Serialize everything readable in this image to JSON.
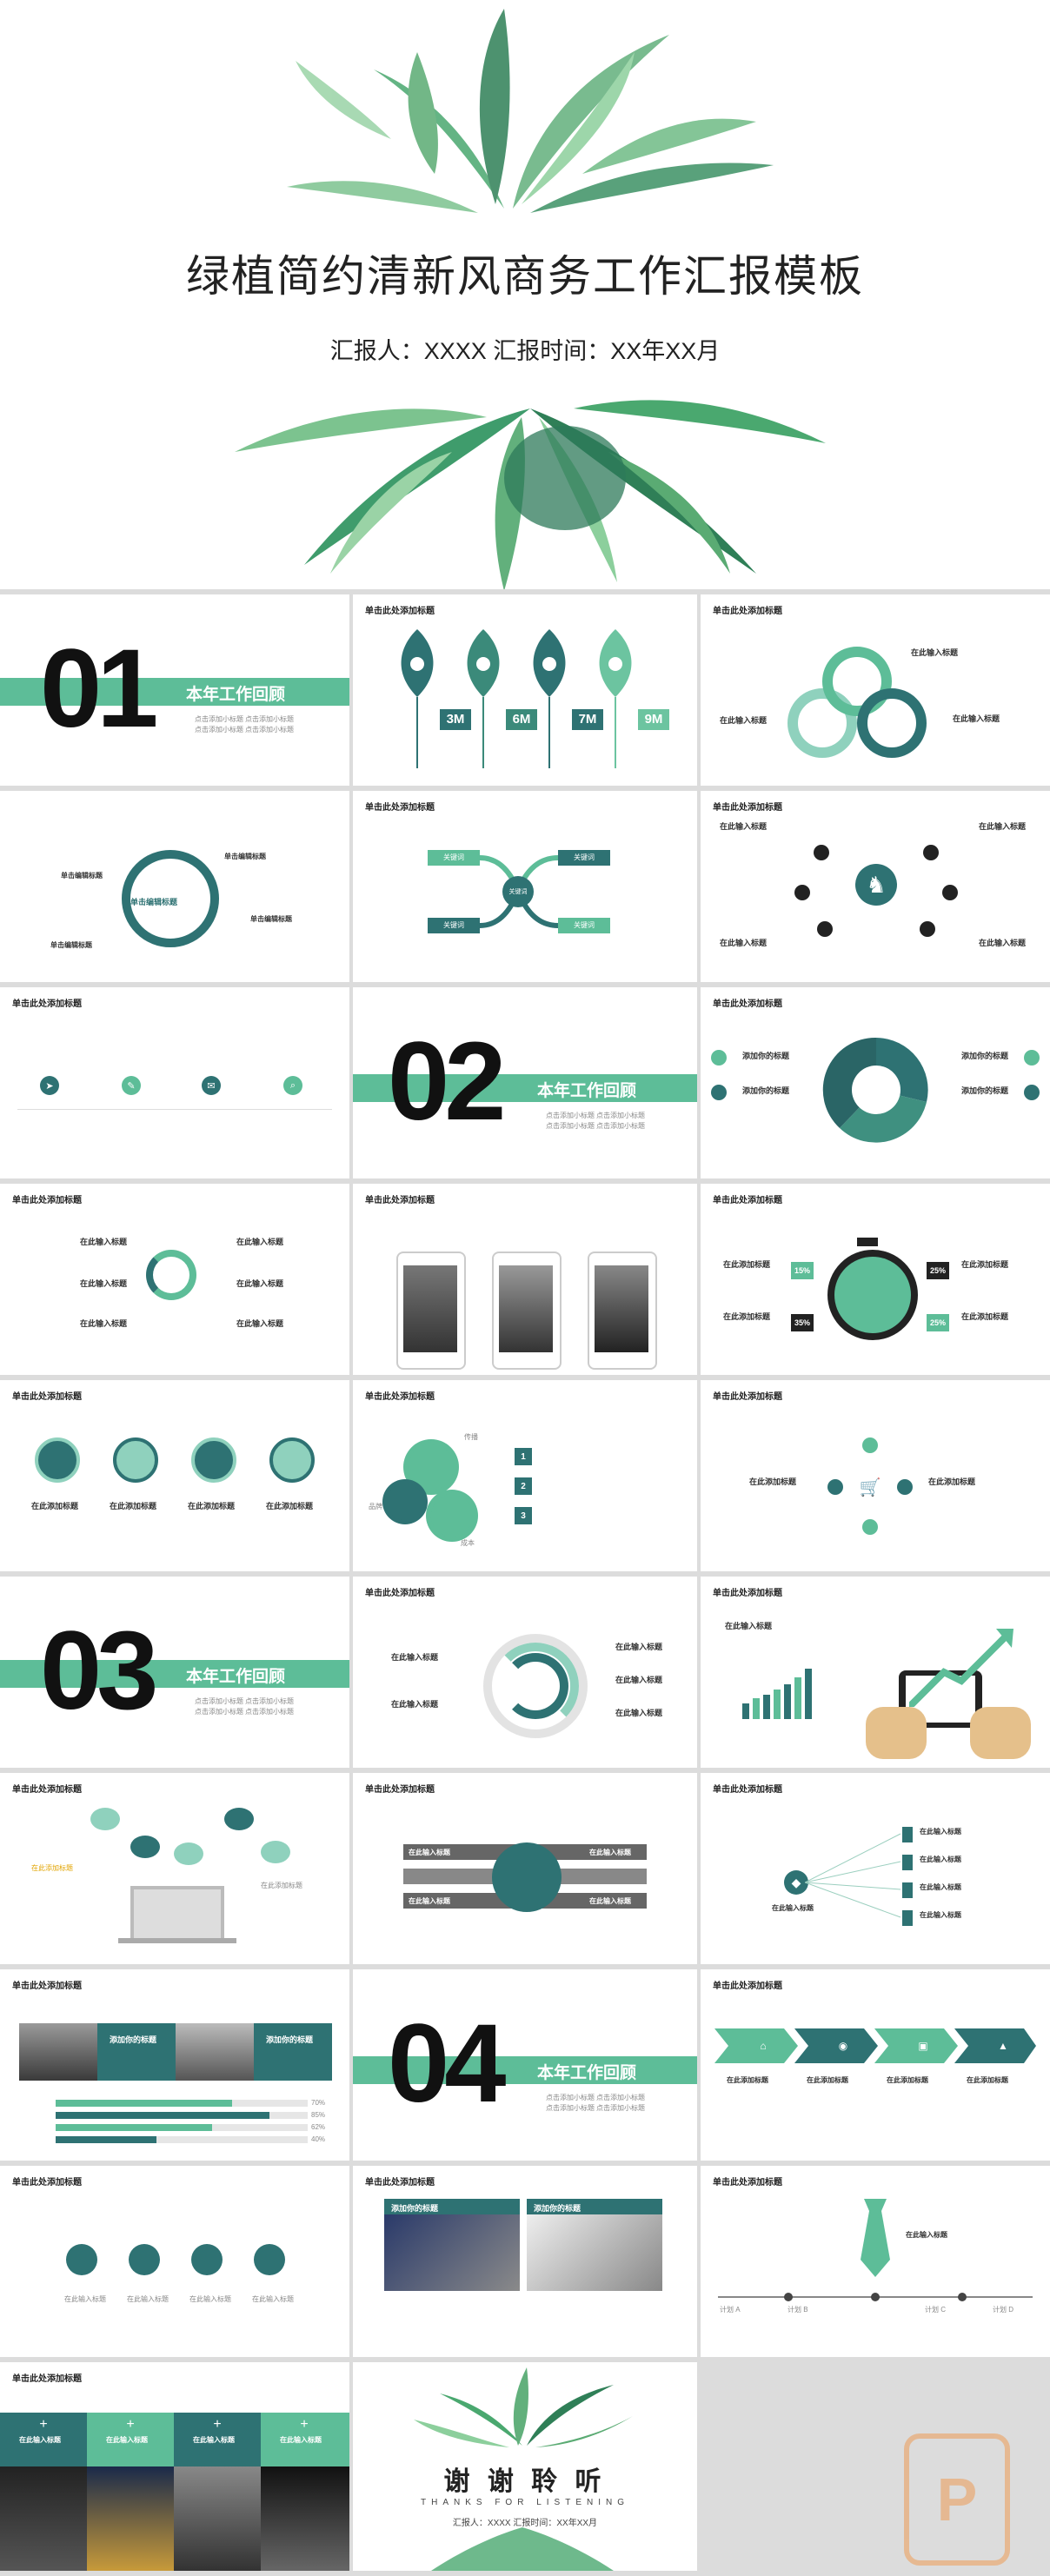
{
  "colors": {
    "green": "#5dbd98",
    "teal": "#2e7273",
    "light": "#8fd1bd"
  },
  "cover": {
    "title": "绿植简约清新风商务工作汇报模板",
    "subtitle": "汇报人：XXXX 汇报时间：XX年XX月"
  },
  "slide_header": "单击此处添加标题",
  "sections": [
    {
      "num": "01",
      "label": "本年工作回顾"
    },
    {
      "num": "02",
      "label": "本年工作回顾"
    },
    {
      "num": "03",
      "label": "本年工作回顾"
    },
    {
      "num": "04",
      "label": "本年工作回顾"
    }
  ],
  "section_sub": [
    "点击添加小标题",
    "点击添加小标题"
  ],
  "leaves": [
    "3M",
    "6M",
    "7M",
    "9M"
  ],
  "common": {
    "input_title": "在此输入标题",
    "click_title": "单击编辑标题",
    "add_title": "添加你的标题",
    "add_title2": "在此添加标题",
    "click_add": "单击此处添加标题"
  },
  "cross": [
    "关键词",
    "关键词",
    "关键词",
    "关键词",
    "关键词"
  ],
  "percent": [
    "15%",
    "25%",
    "35%",
    "25%"
  ],
  "gear": [
    "传播",
    "品牌",
    "成本"
  ],
  "steps": [
    "1",
    "2",
    "3"
  ],
  "hbars": [
    "70%",
    "85%",
    "62%",
    "40%"
  ],
  "timeline": [
    "计划 A",
    "计划 B",
    "计划 C",
    "计划 D"
  ],
  "thanks": {
    "cn": "谢  谢  聆  听",
    "en": "THANKS FOR LISTENING",
    "sub": "汇报人：XXXX 汇报时间：XX年XX月"
  }
}
